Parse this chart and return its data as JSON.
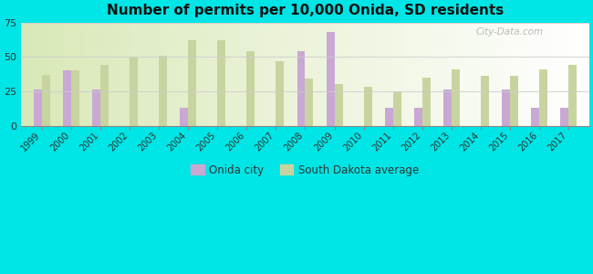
{
  "title": "Number of permits per 10,000 Onida, SD residents",
  "years": [
    1999,
    2000,
    2001,
    2002,
    2003,
    2004,
    2005,
    2006,
    2007,
    2008,
    2009,
    2010,
    2011,
    2012,
    2013,
    2014,
    2015,
    2016,
    2017
  ],
  "onida": [
    26,
    40,
    26,
    null,
    null,
    13,
    null,
    null,
    null,
    54,
    68,
    null,
    13,
    13,
    26,
    null,
    26,
    13,
    13
  ],
  "sd_avg": [
    37,
    40,
    44,
    50,
    51,
    62,
    62,
    54,
    47,
    34,
    30,
    28,
    25,
    35,
    41,
    36,
    36,
    41,
    44
  ],
  "ylim": [
    0,
    75
  ],
  "yticks": [
    0,
    25,
    50,
    75
  ],
  "bar_color_onida": "#c9a8d4",
  "bar_color_sd": "#c8d4a0",
  "background_color": "#00e5e5",
  "plot_bg_color": "#e8f0d8",
  "legend_onida": "Onida city",
  "legend_sd": "South Dakota average",
  "bar_width": 0.28,
  "watermark": "City-Data.com"
}
